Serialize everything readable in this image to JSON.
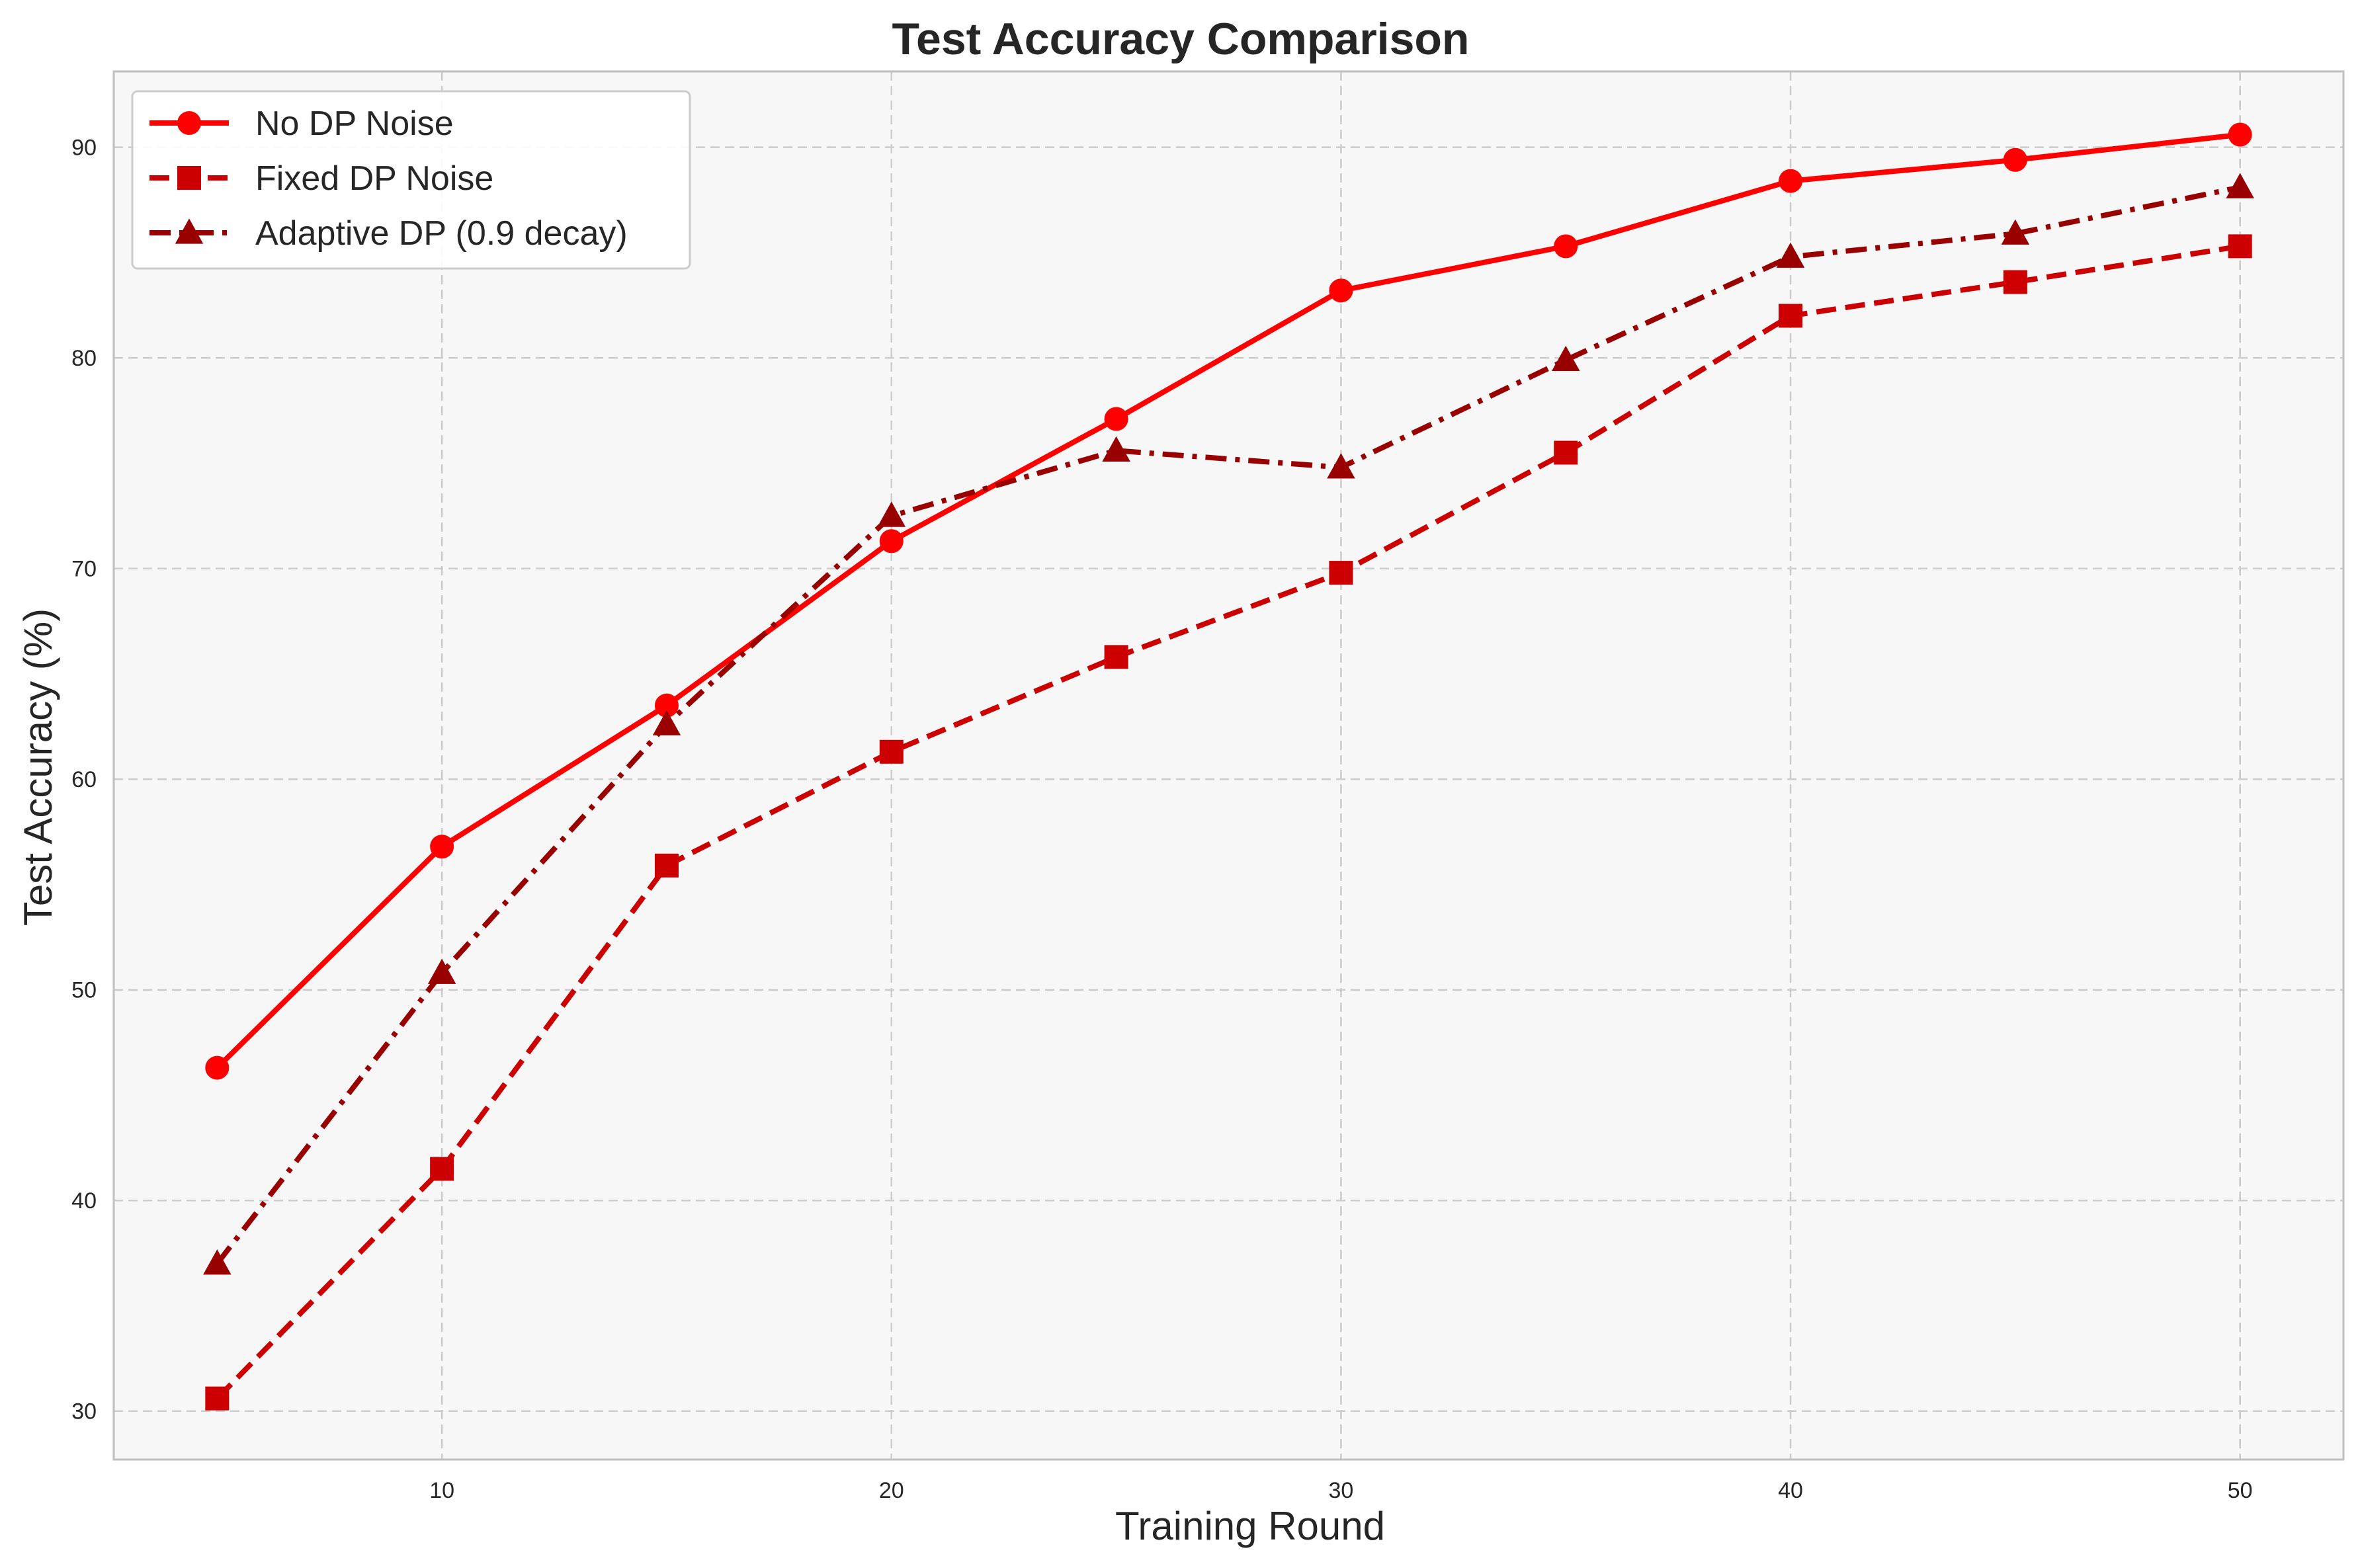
{
  "chart_data": {
    "type": "line",
    "title": "Test Accuracy Comparison",
    "xlabel": "Training Round",
    "ylabel": "Test Accuracy (%)",
    "xlim": [
      2.7,
      52.3
    ],
    "ylim": [
      27.7,
      93.6
    ],
    "xticks": [
      10,
      20,
      30,
      40,
      50
    ],
    "yticks": [
      30,
      40,
      50,
      60,
      70,
      80,
      90
    ],
    "grid": true,
    "legend_position": "top-left",
    "x": [
      5,
      10,
      15,
      20,
      25,
      30,
      35,
      40,
      45,
      50
    ],
    "series": [
      {
        "name": "No DP Noise",
        "values": [
          46.3,
          56.8,
          63.5,
          71.3,
          77.1,
          83.2,
          85.3,
          88.4,
          89.4,
          90.6
        ],
        "color": "#ff0000",
        "line_style": "solid",
        "marker": "circle"
      },
      {
        "name": "Fixed DP Noise",
        "values": [
          30.6,
          41.5,
          55.9,
          61.3,
          65.8,
          69.8,
          75.5,
          82.0,
          83.6,
          85.3
        ],
        "color": "#cc0000",
        "line_style": "dashed",
        "marker": "square"
      },
      {
        "name": "Adaptive DP (0.9 decay)",
        "values": [
          37.0,
          50.8,
          62.6,
          72.5,
          75.6,
          74.8,
          79.9,
          84.8,
          85.9,
          88.1
        ],
        "color": "#990000",
        "line_style": "dashdot",
        "marker": "triangle"
      }
    ]
  }
}
